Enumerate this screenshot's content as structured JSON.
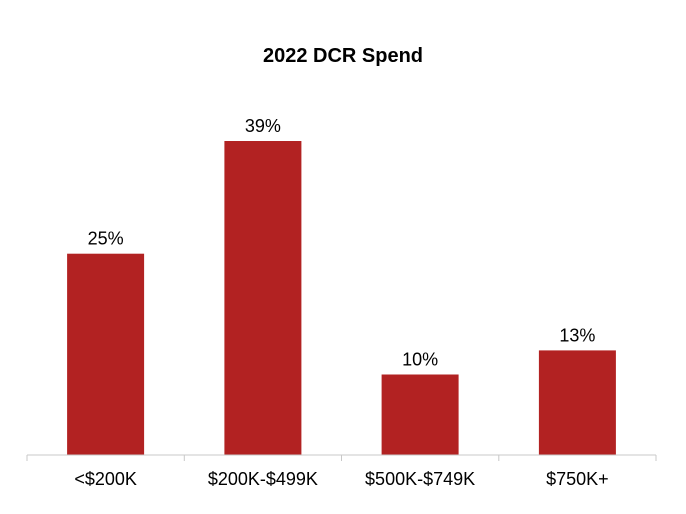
{
  "chart_data": {
    "type": "bar",
    "title": "2022 DCR Spend",
    "categories": [
      "<$200K",
      "$200K-$499K",
      "$500K-$749K",
      "$750K+"
    ],
    "values": [
      25,
      39,
      10,
      13
    ],
    "value_labels": [
      "25%",
      "39%",
      "10%",
      "13%"
    ],
    "ylim": [
      0,
      45
    ],
    "xlabel": "",
    "ylabel": "",
    "grid": false,
    "legend": "none",
    "bar_color": "#b22222",
    "axis_color": "#c8c8c8"
  }
}
